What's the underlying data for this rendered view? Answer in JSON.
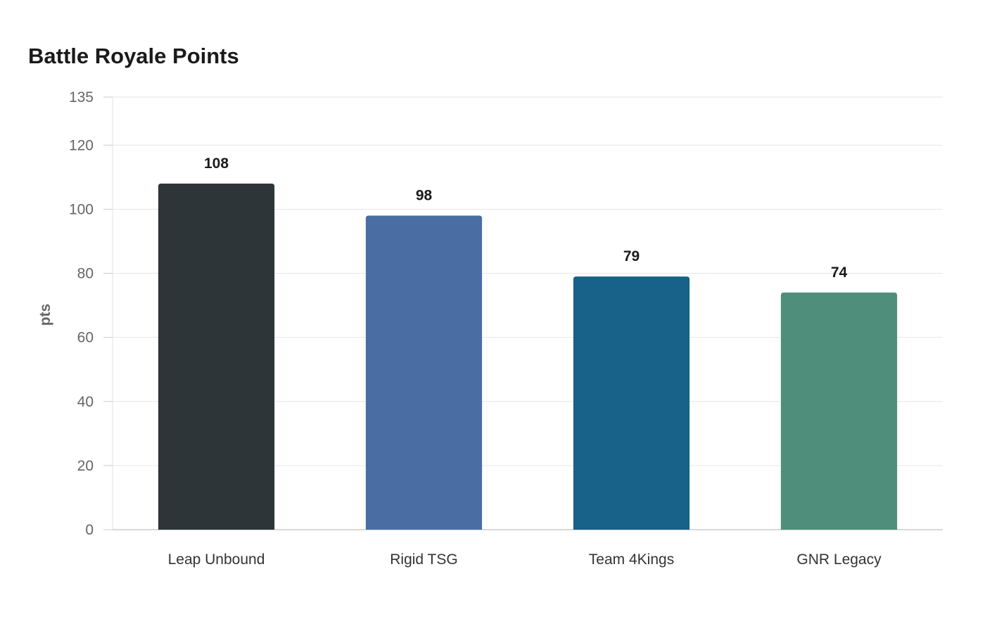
{
  "chart_data": {
    "type": "bar",
    "title": "Battle Royale Points",
    "xlabel": "",
    "ylabel": "pts",
    "categories": [
      "Leap Unbound",
      "Rigid TSG",
      "Team 4Kings",
      "GNR Legacy"
    ],
    "values": [
      108,
      98,
      79,
      74
    ],
    "colors": [
      "#2e3538",
      "#4a6ea3",
      "#186188",
      "#4f8e7b"
    ],
    "ylim": [
      0,
      135
    ],
    "yticks": [
      0,
      20,
      40,
      60,
      80,
      100,
      120,
      135
    ],
    "grid": true,
    "legend": "none"
  }
}
